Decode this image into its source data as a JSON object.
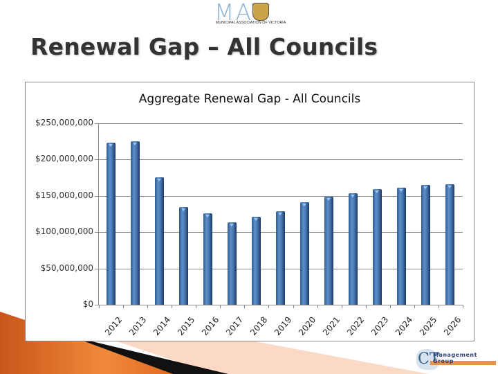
{
  "header": {
    "logo_text": "MAV",
    "logo_subtext": "MUNICIPAL ASSOCIATION OF VICTORIA",
    "slide_title": "Renewal Gap – All Councils"
  },
  "footer": {
    "logo_initials": "CT",
    "logo_name": "Management Group"
  },
  "colors": {
    "bar": "#4a7ab5",
    "title": "#333333",
    "accent_orange": "#e07a2a"
  },
  "chart_data": {
    "type": "bar",
    "title": "Aggregate Renewal Gap - All Councils",
    "xlabel": "",
    "ylabel": "",
    "categories": [
      "2012",
      "2013",
      "2014",
      "2015",
      "2016",
      "2017",
      "2018",
      "2019",
      "2020",
      "2021",
      "2022",
      "2023",
      "2024",
      "2025",
      "2026"
    ],
    "values": [
      223000000,
      225000000,
      176000000,
      135000000,
      126000000,
      114000000,
      121000000,
      129000000,
      141000000,
      149000000,
      154000000,
      159000000,
      161000000,
      165000000,
      166000000
    ],
    "ylim": [
      0,
      250000000
    ],
    "yticks": [
      "$250,000,000",
      "$200,000,000",
      "$150,000,000",
      "$100,000,000",
      "$50,000,000",
      "$0"
    ],
    "grid": true,
    "legend": "none"
  }
}
